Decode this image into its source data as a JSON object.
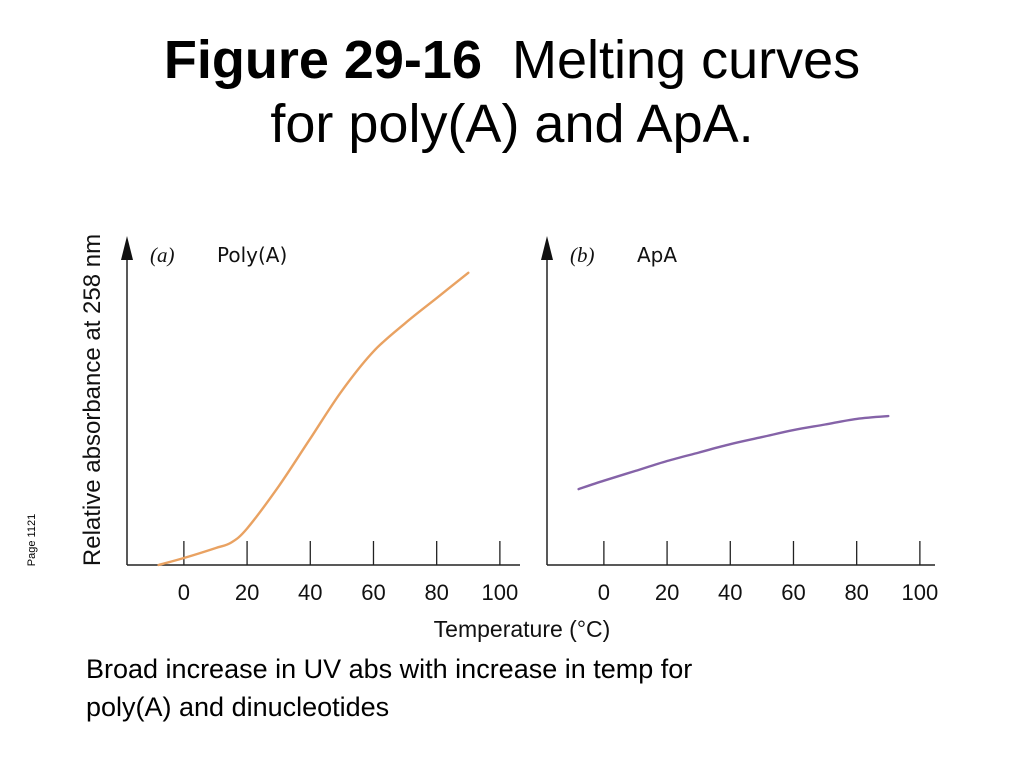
{
  "slide": {
    "title_bold": "Figure 29-16",
    "title_rest_line1": "Melting curves",
    "title_line2": "for poly(A) and ApA.",
    "caption_line1": "Broad increase in UV abs with increase in temp for",
    "caption_line2": "poly(A) and dinucleotides",
    "page_label": "Page 1121"
  },
  "chart_data": [
    {
      "type": "line",
      "panel_label": "(a)",
      "title": "Poly(A)",
      "xlabel": "Temperature (°C)",
      "ylabel": "Relative absorbance at 258 nm",
      "xticks": [
        0,
        20,
        40,
        60,
        80,
        100
      ],
      "xlim": [
        -18,
        100
      ],
      "ylim": [
        0,
        100
      ],
      "grid": false,
      "color": "#e9a262",
      "series": [
        {
          "x": [
            -8,
            0,
            10,
            15,
            20,
            30,
            40,
            50,
            60,
            70,
            80,
            90
          ],
          "y": [
            0,
            2.5,
            6,
            8,
            13,
            28,
            45,
            62,
            76,
            86,
            95,
            104
          ]
        }
      ]
    },
    {
      "type": "line",
      "panel_label": "(b)",
      "title": "ApA",
      "xlabel": "Temperature (°C)",
      "ylabel": "",
      "xticks": [
        0,
        20,
        40,
        60,
        80,
        100
      ],
      "xlim": [
        -18,
        100
      ],
      "ylim": [
        0,
        100
      ],
      "grid": false,
      "color": "#8563a8",
      "series": [
        {
          "x": [
            -8,
            0,
            10,
            20,
            30,
            40,
            50,
            60,
            70,
            80,
            90
          ],
          "y": [
            27,
            30,
            33.5,
            37,
            40,
            43,
            45.5,
            48,
            50,
            52,
            53
          ]
        }
      ]
    }
  ]
}
